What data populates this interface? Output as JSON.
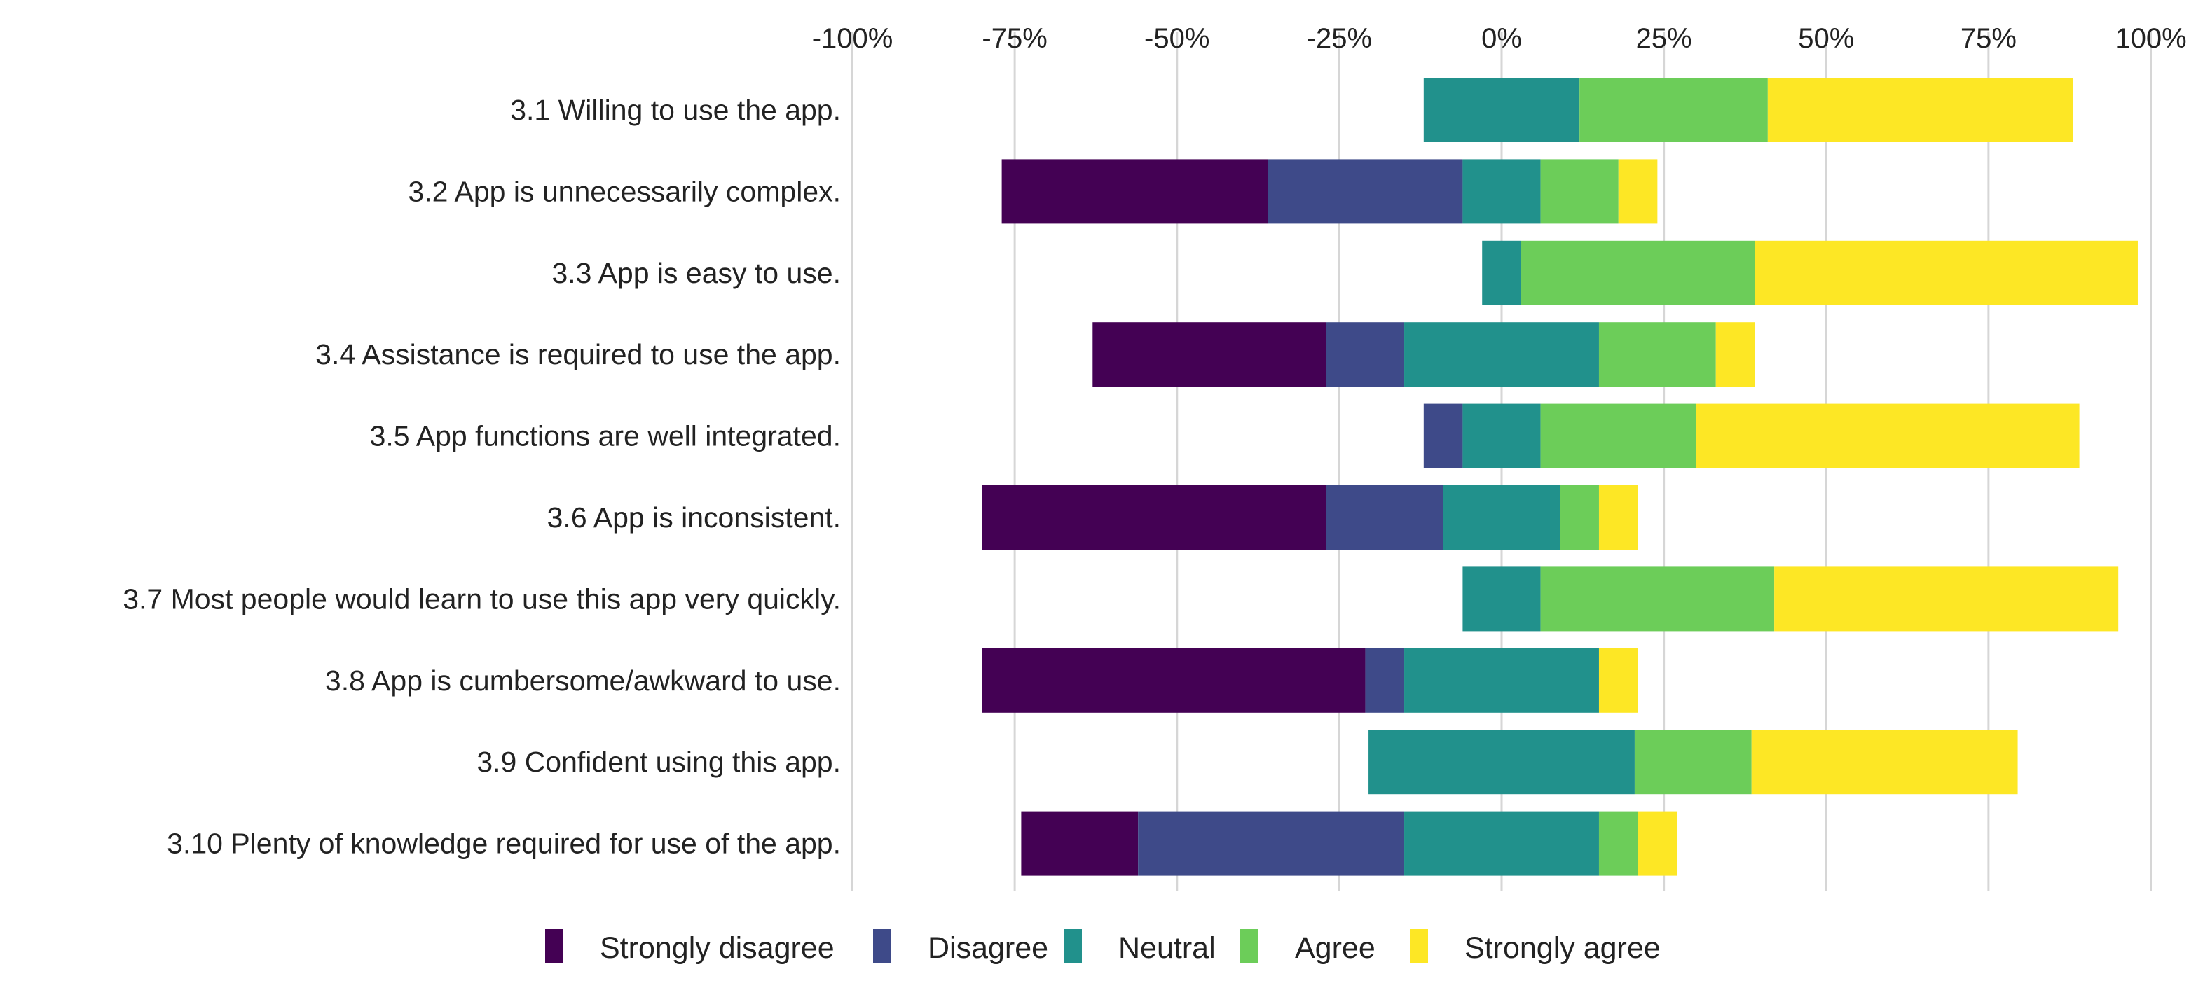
{
  "chart_data": {
    "type": "bar",
    "orientation": "horizontal",
    "stacked": true,
    "diverging": true,
    "title": "",
    "xlabel": "",
    "ylabel": "",
    "xlim": [
      -100,
      100
    ],
    "x_ticks": [
      -100,
      -75,
      -50,
      -25,
      0,
      25,
      50,
      75,
      100
    ],
    "x_tick_labels": [
      "-100%",
      "-75%",
      "-50%",
      "-25%",
      "0%",
      "25%",
      "50%",
      "75%",
      "100%"
    ],
    "grid": true,
    "legend_position": "bottom",
    "categories": [
      "3.1 Willing to use the app.",
      "3.2 App is unnecessarily complex.",
      "3.3 App is easy to use.",
      "3.4 Assistance is required to use the app.",
      "3.5 App functions are well integrated.",
      "3.6 App is inconsistent.",
      "3.7 Most people would learn to use this app very quickly.",
      "3.8 App is cumbersome/awkward to use.",
      "3.9 Confident using this app.",
      "3.10 Plenty of knowledge required for use of the app."
    ],
    "series": [
      {
        "name": "Strongly disagree",
        "color": "#440154",
        "values": [
          0,
          41,
          0,
          36,
          0,
          53,
          0,
          59,
          0,
          18
        ]
      },
      {
        "name": "Disagree",
        "color": "#3e4a89",
        "values": [
          0,
          30,
          0,
          12,
          6,
          18,
          0,
          6,
          0,
          41
        ]
      },
      {
        "name": "Neutral",
        "color": "#21918c",
        "values": [
          24,
          12,
          6,
          30,
          12,
          18,
          12,
          30,
          41,
          30
        ]
      },
      {
        "name": "Agree",
        "color": "#6ccd59",
        "values": [
          29,
          12,
          36,
          18,
          24,
          6,
          36,
          0,
          18,
          6
        ]
      },
      {
        "name": "Strongly agree",
        "color": "#fde725",
        "values": [
          47,
          6,
          59,
          6,
          59,
          6,
          53,
          6,
          41,
          6
        ]
      }
    ]
  }
}
